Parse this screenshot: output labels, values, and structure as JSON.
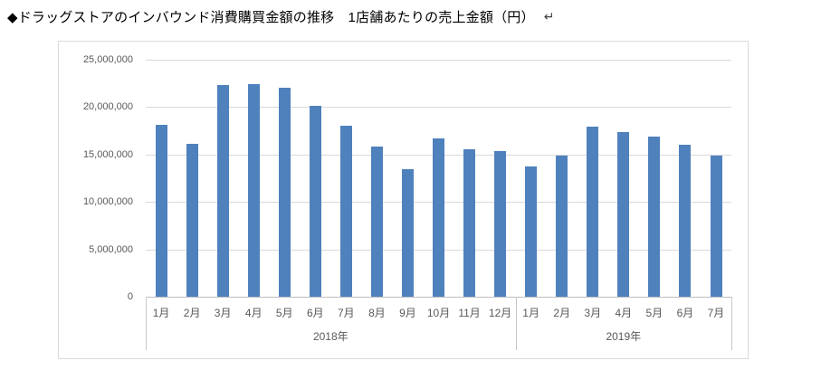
{
  "page": {
    "title": "◆ドラッグストアのインバウンド消費購買金額の推移　1店舗あたりの売上金額（円）",
    "paragraph_mark": "↵"
  },
  "chart_data": {
    "type": "bar",
    "title": "ドラッグストアのインバウンド消費購買金額の推移　1店舗あたりの売上金額（円）",
    "xlabel": "",
    "ylabel": "",
    "ylim": [
      0,
      25000000
    ],
    "ytick_interval": 5000000,
    "ytick_labels": [
      "0",
      "5,000,000",
      "10,000,000",
      "15,000,000",
      "20,000,000",
      "25,000,000"
    ],
    "grid": true,
    "legend": "none",
    "bar_color": "#4F81BD",
    "categories": [
      "1月",
      "2月",
      "3月",
      "4月",
      "5月",
      "6月",
      "7月",
      "8月",
      "9月",
      "10月",
      "11月",
      "12月",
      "1月",
      "2月",
      "3月",
      "4月",
      "5月",
      "6月",
      "7月"
    ],
    "values": [
      18100000,
      16100000,
      22300000,
      22400000,
      22000000,
      20100000,
      18000000,
      15800000,
      13500000,
      16700000,
      15600000,
      15400000,
      13700000,
      14900000,
      17900000,
      17400000,
      16900000,
      16000000,
      14900000
    ],
    "group_labels": [
      "2018年",
      "2019年"
    ],
    "group_sizes": [
      12,
      7
    ]
  },
  "colors": {
    "bar": "#4F81BD",
    "gridline": "#d9d9d9",
    "axis_line": "#bfbfbf",
    "separator": "#c9c9c9",
    "tick_label": "#595959",
    "frame_border": "#d9d9d9",
    "title": "#000000"
  }
}
